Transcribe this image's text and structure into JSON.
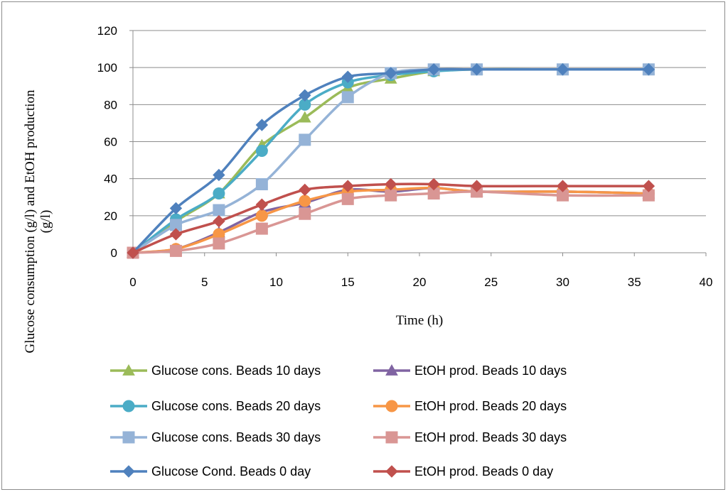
{
  "chart_data": {
    "type": "line",
    "xlabel": "Time (h)",
    "ylabel": [
      "Glucose consumption (g/l) and EtOH production",
      "(g/l)"
    ],
    "xlim": [
      0,
      40
    ],
    "ylim": [
      0,
      120
    ],
    "x_ticks": [
      0,
      5,
      10,
      15,
      20,
      25,
      30,
      35,
      40
    ],
    "y_ticks": [
      0,
      20,
      40,
      60,
      80,
      100,
      120
    ],
    "grid": "horizontal",
    "legend_position": "bottom",
    "x": [
      0,
      3,
      6,
      9,
      12,
      15,
      18,
      21,
      24,
      30,
      36
    ],
    "series": [
      {
        "name": "Glucose cons. Beads 10 days",
        "color": "#9bbb59",
        "marker": "triangle",
        "values": [
          0,
          17,
          32,
          58,
          73,
          89,
          94,
          98,
          99,
          99,
          99
        ]
      },
      {
        "name": "EtOH prod. Beads 10 days",
        "color": "#8064a2",
        "marker": "triangle",
        "values": [
          0,
          2,
          11,
          22,
          27,
          34,
          33,
          35,
          33,
          33,
          32
        ]
      },
      {
        "name": "Glucose cons. Beads 20 days",
        "color": "#4bacc6",
        "marker": "circle",
        "values": [
          0,
          18,
          32,
          55,
          80,
          92,
          96,
          98,
          99,
          99,
          99
        ]
      },
      {
        "name": "EtOH prod. Beads 20 days",
        "color": "#f79646",
        "marker": "circle",
        "values": [
          0,
          2,
          10,
          20,
          28,
          33,
          34,
          35,
          33,
          33,
          32
        ]
      },
      {
        "name": "Glucose cons. Beads 30 days",
        "color": "#95b3d7",
        "marker": "square",
        "values": [
          0,
          15,
          23,
          37,
          61,
          84,
          97,
          99,
          99,
          99,
          99
        ]
      },
      {
        "name": "EtOH prod. Beads 30 days",
        "color": "#d99694",
        "marker": "square",
        "values": [
          0,
          1,
          5,
          13,
          21,
          29,
          31,
          32,
          33,
          31,
          31
        ]
      },
      {
        "name": "Glucose Cond. Beads 0 day",
        "color": "#4f81bd",
        "marker": "diamond",
        "values": [
          0,
          24,
          42,
          69,
          85,
          95,
          97,
          99,
          99,
          99,
          99
        ]
      },
      {
        "name": "EtOH prod. Beads 0 day",
        "color": "#c0504d",
        "marker": "diamond",
        "values": [
          0,
          10,
          17,
          26,
          34,
          36,
          37,
          37,
          36,
          36,
          36
        ]
      }
    ]
  }
}
